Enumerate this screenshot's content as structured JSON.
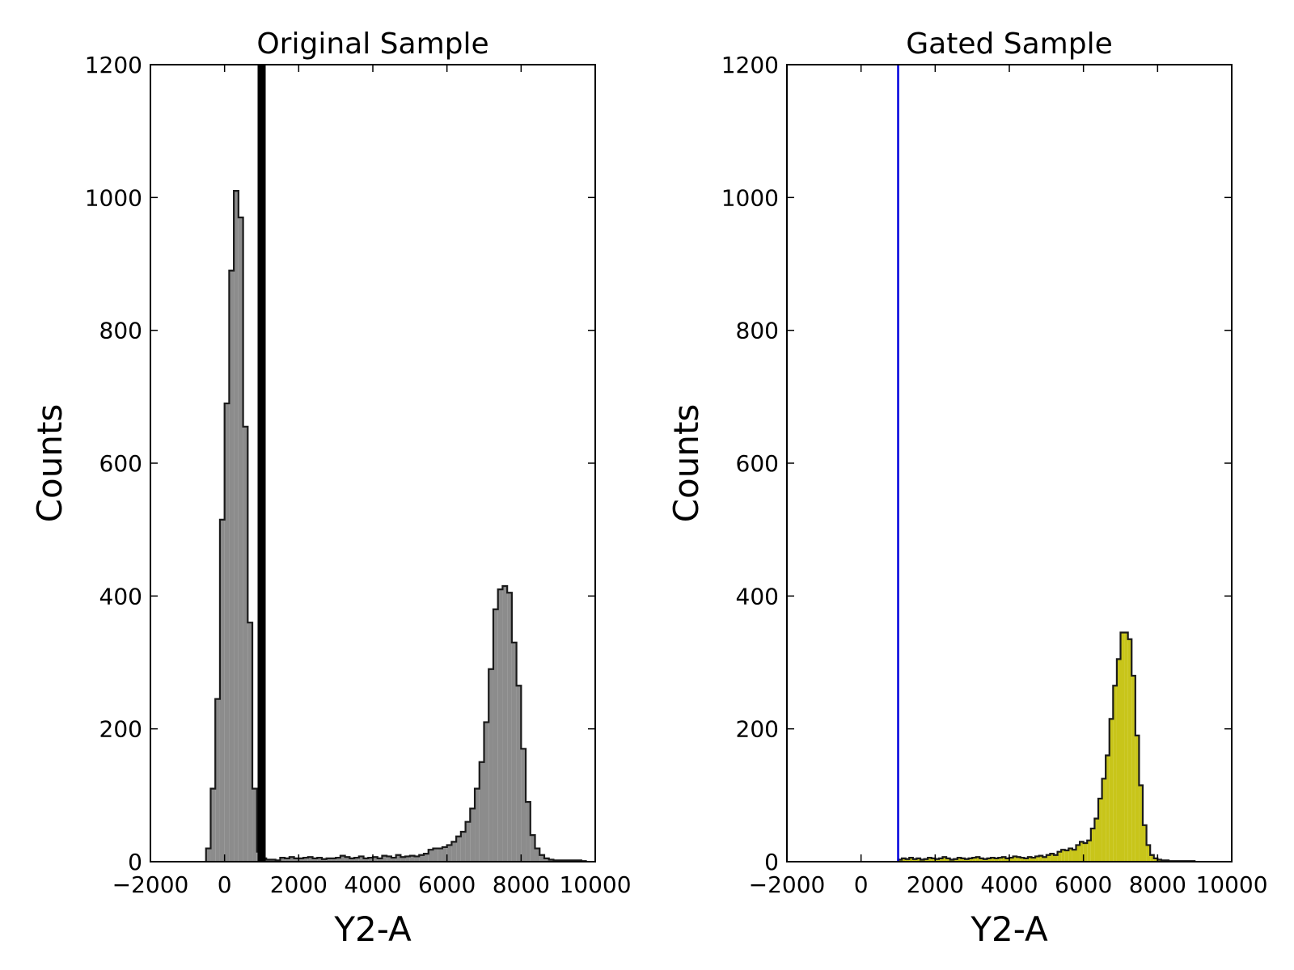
{
  "chart_data": [
    {
      "type": "bar",
      "title": "Original Sample",
      "xlabel": "Y2-A",
      "ylabel": "Counts",
      "xlim": [
        -2000,
        10000
      ],
      "ylim": [
        0,
        1200
      ],
      "xticks": [
        -2000,
        0,
        2000,
        4000,
        6000,
        8000,
        10000
      ],
      "xtick_labels": [
        "−2000",
        "0",
        "2000",
        "4000",
        "6000",
        "8000",
        "10000"
      ],
      "yticks": [
        0,
        200,
        400,
        600,
        800,
        1000,
        1200
      ],
      "ytick_labels": [
        "0",
        "200",
        "400",
        "600",
        "800",
        "1000",
        "1200"
      ],
      "grid": false,
      "histogram_style": "stepfilled",
      "fill_color": "#8c8c8c",
      "edge_color": "#1a1a1a",
      "bin_width": 125,
      "bins_start": -500,
      "counts": [
        20,
        110,
        245,
        515,
        690,
        890,
        1010,
        970,
        655,
        360,
        110,
        15,
        5,
        3,
        3,
        2,
        6,
        5,
        7,
        5,
        5,
        6,
        7,
        5,
        6,
        4,
        5,
        5,
        6,
        9,
        7,
        5,
        6,
        8,
        5,
        6,
        7,
        5,
        9,
        8,
        6,
        10,
        7,
        8,
        9,
        8,
        10,
        12,
        18,
        20,
        20,
        22,
        25,
        30,
        38,
        45,
        60,
        80,
        110,
        150,
        210,
        290,
        380,
        410,
        415,
        405,
        330,
        265,
        170,
        90,
        40,
        20,
        10,
        5,
        3,
        2,
        2,
        2,
        2,
        2,
        2,
        1
      ],
      "threshold": {
        "x": 1000,
        "color": "#000000",
        "line_width_label": "thick"
      }
    },
    {
      "type": "bar",
      "title": "Gated Sample",
      "xlabel": "Y2-A",
      "ylabel": "Counts",
      "xlim": [
        -2000,
        10000
      ],
      "ylim": [
        0,
        1200
      ],
      "xticks": [
        -2000,
        0,
        2000,
        4000,
        6000,
        8000,
        10000
      ],
      "xtick_labels": [
        "−2000",
        "0",
        "2000",
        "4000",
        "6000",
        "8000",
        "10000"
      ],
      "yticks": [
        0,
        200,
        400,
        600,
        800,
        1000,
        1200
      ],
      "ytick_labels": [
        "0",
        "200",
        "400",
        "600",
        "800",
        "1000",
        "1200"
      ],
      "grid": false,
      "histogram_style": "stepfilled",
      "fill_color": "#c8c51a",
      "edge_color": "#1a1a1a",
      "bin_width": 100,
      "bins_start": 1000,
      "counts": [
        3,
        5,
        4,
        6,
        4,
        5,
        3,
        4,
        6,
        5,
        4,
        5,
        7,
        5,
        3,
        4,
        6,
        5,
        4,
        5,
        6,
        7,
        5,
        4,
        5,
        6,
        5,
        6,
        7,
        5,
        6,
        8,
        7,
        6,
        5,
        7,
        6,
        8,
        9,
        7,
        10,
        12,
        10,
        15,
        18,
        17,
        20,
        18,
        25,
        30,
        28,
        32,
        50,
        65,
        95,
        125,
        160,
        215,
        265,
        305,
        345,
        345,
        335,
        280,
        190,
        115,
        55,
        25,
        10,
        5,
        3,
        2,
        2,
        1,
        1,
        1,
        1,
        1,
        1,
        1
      ],
      "threshold": {
        "x": 1000,
        "color": "#0000dd",
        "line_width_label": "thin"
      }
    }
  ]
}
